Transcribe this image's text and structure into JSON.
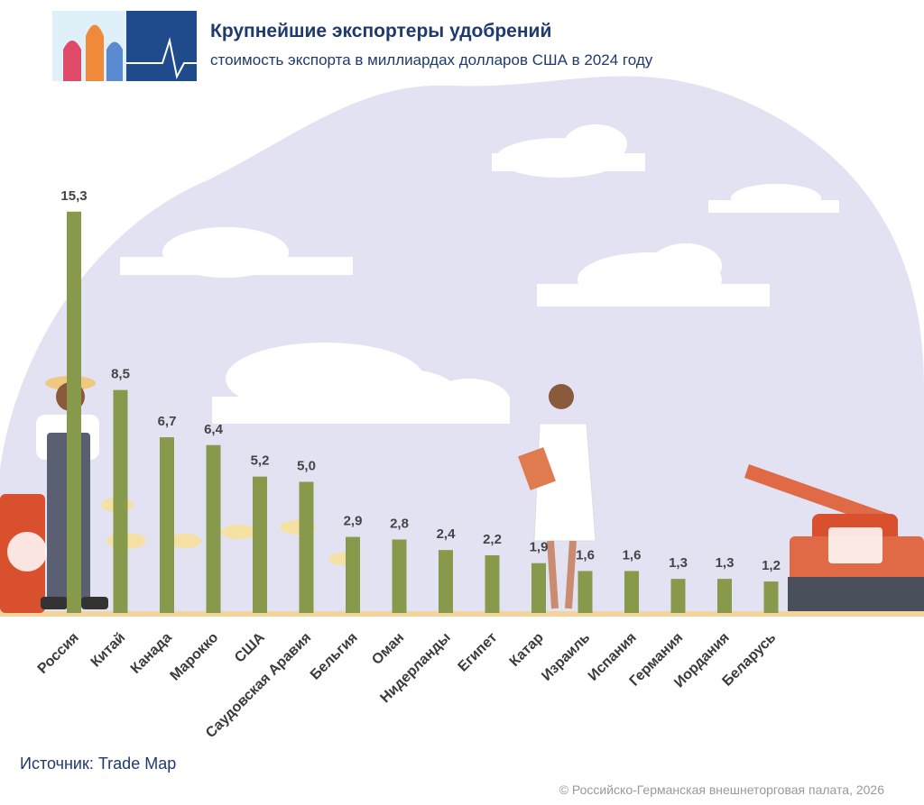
{
  "chart_data": {
    "type": "bar",
    "title": "Крупнейшие экспортеры удобрений",
    "subtitle": "стоимость экспорта в миллиардах долларов США в 2024 году",
    "categories": [
      "Россия",
      "Китай",
      "Канада",
      "Марокко",
      "США",
      "Саудовская Аравия",
      "Бельгия",
      "Оман",
      "Нидерланды",
      "Египет",
      "Катар",
      "Израиль",
      "Испания",
      "Германия",
      "Иордания",
      "Беларусь"
    ],
    "values": [
      15.3,
      8.5,
      6.7,
      6.4,
      5.2,
      5.0,
      2.9,
      2.8,
      2.4,
      2.2,
      1.9,
      1.6,
      1.6,
      1.3,
      1.3,
      1.2
    ],
    "value_labels": [
      "15,3",
      "8,5",
      "6,7",
      "6,4",
      "5,2",
      "5,0",
      "2,9",
      "2,8",
      "2,4",
      "2,2",
      "1,9",
      "1,6",
      "1,6",
      "1,3",
      "1,3",
      "1,2"
    ],
    "color": "#87994a",
    "source": "Источник: Trade Map",
    "copyright": "© Российско-Германская внешнеторговая палата, 2026"
  }
}
